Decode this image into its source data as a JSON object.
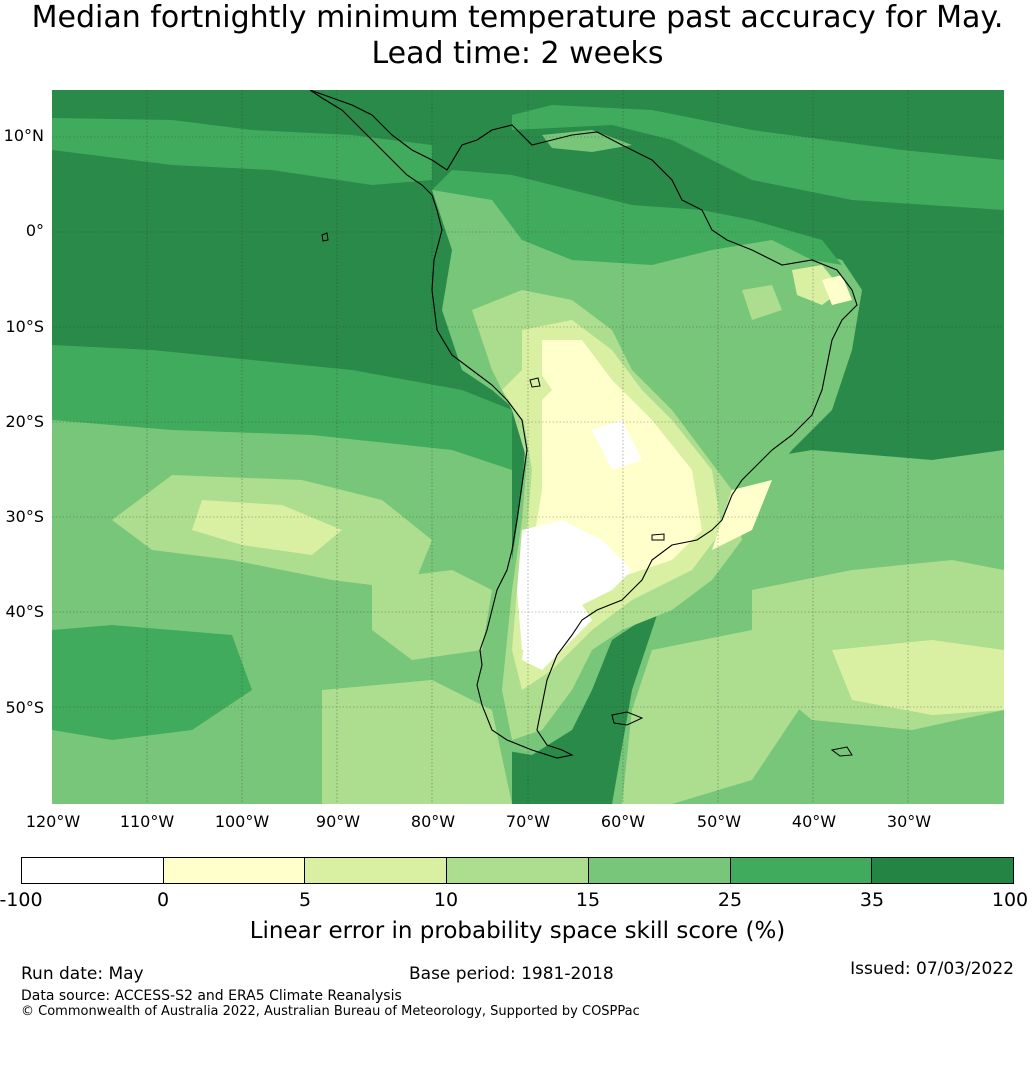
{
  "title": "Median fortnightly minimum temperature past accuracy for May. Lead time: 2 weeks",
  "map": {
    "region": "South America",
    "lat_labels": [
      "10°N",
      "0°",
      "10°S",
      "20°S",
      "30°S",
      "40°S",
      "50°S"
    ],
    "lon_labels": [
      "120°W",
      "110°W",
      "100°W",
      "90°W",
      "80°W",
      "70°W",
      "60°W",
      "50°W",
      "40°W",
      "30°W"
    ]
  },
  "colorbar": {
    "ticks": [
      "-100",
      "0",
      "5",
      "10",
      "15",
      "25",
      "35",
      "100"
    ],
    "colors": [
      "#ffffff",
      "#ffffcc",
      "#d9f0a3",
      "#addd8e",
      "#78c679",
      "#41ab5d",
      "#238443"
    ],
    "label": "Linear error in probability space skill score (%)"
  },
  "footer": {
    "run_date": "Run date: May",
    "base_period": "Base period: 1981-2018",
    "issued": "Issued: 07/03/2022",
    "data_source": "Data source: ACCESS-S2 and ERA5 Climate Reanalysis",
    "copyright": "© Commonwealth of Australia 2022, Australian Bureau of Meteorology, Supported by COSPPac"
  }
}
